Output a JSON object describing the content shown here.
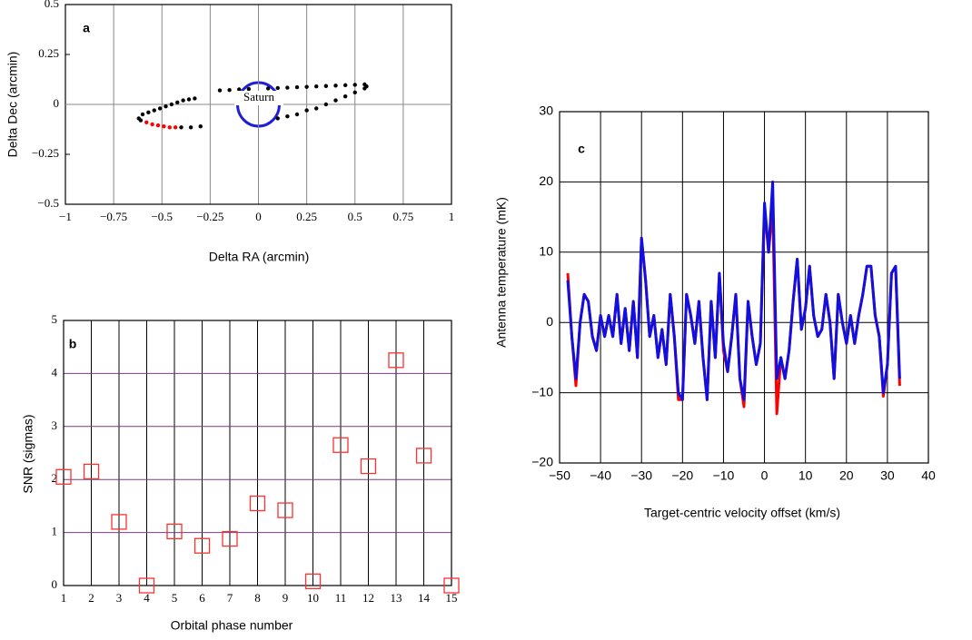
{
  "chart_data": [
    {
      "type": "scatter",
      "panel_label": "a",
      "xlabel": "Delta RA (arcmin)",
      "ylabel": "Delta Dec (arcmin)",
      "annotation": "Saturn",
      "xlim": [
        -1,
        1
      ],
      "ylim": [
        -0.5,
        0.5
      ],
      "xticks": [
        {
          "value": -1,
          "label": "−1"
        },
        {
          "value": -0.75,
          "label": "−0.75"
        },
        {
          "value": -0.5,
          "label": "−0.5"
        },
        {
          "value": -0.25,
          "label": "−0.25"
        },
        0,
        0.25,
        0.5,
        0.75,
        1
      ],
      "yticks": [
        {
          "value": -0.5,
          "label": "−0.5"
        },
        {
          "value": -0.25,
          "label": "−0.25"
        },
        0,
        0.25,
        0.5
      ],
      "xgrid": true,
      "ygrid": false,
      "xgrid_color": "#888888",
      "marker": "circle",
      "series": [
        {
          "color": "#000000",
          "x": [
            -0.62,
            -0.6,
            -0.57,
            -0.54,
            -0.51,
            -0.48,
            -0.45,
            -0.42,
            -0.39,
            -0.36,
            -0.33,
            -0.2,
            -0.15,
            -0.1,
            -0.05,
            0.05,
            0.1,
            0.15,
            0.2,
            0.25,
            0.3,
            0.35,
            0.4,
            0.45,
            0.5,
            0.55,
            0.56,
            0.55,
            0.5,
            0.45,
            0.4,
            0.35,
            0.3,
            0.25,
            0.2,
            0.15,
            0.1,
            -0.3,
            -0.35,
            -0.4,
            -0.61
          ],
          "values": [
            -0.07,
            -0.05,
            -0.04,
            -0.03,
            -0.02,
            -0.01,
            0,
            0.01,
            0.02,
            0.025,
            0.03,
            0.07,
            0.072,
            0.075,
            0.077,
            0.08,
            0.082,
            0.084,
            0.086,
            0.088,
            0.09,
            0.092,
            0.094,
            0.096,
            0.098,
            0.1,
            0.09,
            0.08,
            0.06,
            0.04,
            0.02,
            0,
            -0.02,
            -0.03,
            -0.05,
            -0.06,
            -0.07,
            -0.11,
            -0.115,
            -0.115,
            -0.08
          ]
        },
        {
          "color": "#ff0000",
          "x": [
            -0.58,
            -0.55,
            -0.52,
            -0.49,
            -0.46,
            -0.43
          ],
          "values": [
            -0.09,
            -0.1,
            -0.105,
            -0.11,
            -0.115,
            -0.115
          ]
        }
      ]
    },
    {
      "type": "scatter",
      "panel_label": "b",
      "xlabel": "Orbital phase number",
      "ylabel": "SNR (sigmas)",
      "xlim": [
        1,
        15
      ],
      "ylim": [
        0,
        5
      ],
      "xticks": [
        1,
        2,
        3,
        4,
        5,
        6,
        7,
        8,
        9,
        10,
        11,
        12,
        13,
        14,
        15
      ],
      "yticks": [
        0,
        1,
        2,
        3,
        4,
        5
      ],
      "xgrid": true,
      "ygrid": true,
      "xgrid_color": "#000000",
      "ygrid_color": "#7a3a8a",
      "marker": "square",
      "series": [
        {
          "color": "#ff3030",
          "x": [
            1,
            2,
            3,
            4,
            5,
            6,
            7,
            8,
            9,
            10,
            11,
            12,
            13,
            14,
            15
          ],
          "values": [
            2.05,
            2.15,
            1.2,
            0,
            1.02,
            0.75,
            0.88,
            1.55,
            1.42,
            0.08,
            2.65,
            2.25,
            4.25,
            2.45,
            0
          ]
        }
      ]
    },
    {
      "type": "line",
      "panel_label": "c",
      "xlabel": "Target-centric velocity offset (km/s)",
      "ylabel": "Antenna temperature (mK)",
      "xlim": [
        -50,
        40
      ],
      "ylim": [
        -20,
        30
      ],
      "xticks": [
        {
          "value": -50,
          "label": "−50"
        },
        {
          "value": -40,
          "label": "−40"
        },
        {
          "value": -30,
          "label": "−30"
        },
        {
          "value": -20,
          "label": "−20"
        },
        {
          "value": -10,
          "label": "−10"
        },
        0,
        10,
        20,
        30,
        40
      ],
      "yticks": [
        {
          "value": -20,
          "label": "−20"
        },
        {
          "value": -10,
          "label": "−10"
        },
        0,
        10,
        20,
        30
      ],
      "xgrid": true,
      "ygrid": true,
      "xgrid_color": "#000000",
      "ygrid_color": "#000000",
      "x": [
        -48,
        -47,
        -46,
        -45,
        -44,
        -43,
        -42,
        -41,
        -40,
        -39,
        -38,
        -37,
        -36,
        -35,
        -34,
        -33,
        -32,
        -31,
        -30,
        -29,
        -28,
        -27,
        -26,
        -25,
        -24,
        -23,
        -22,
        -21,
        -20,
        -19,
        -18,
        -17,
        -16,
        -15,
        -14,
        -13,
        -12,
        -11,
        -10,
        -9,
        -8,
        -7,
        -6,
        -5,
        -4,
        -3,
        -2,
        -1,
        0,
        1,
        2,
        3,
        4,
        5,
        6,
        7,
        8,
        9,
        10,
        11,
        12,
        13,
        14,
        15,
        16,
        17,
        18,
        19,
        20,
        21,
        22,
        23,
        24,
        25,
        26,
        27,
        28,
        29,
        30,
        31,
        32,
        33
      ],
      "series": [
        {
          "color": "#ff0000",
          "values": [
            7,
            -2,
            -9,
            0,
            4,
            3,
            -2,
            -4,
            1,
            -2,
            1,
            -2,
            4,
            -3,
            2,
            -4,
            3,
            -5,
            12,
            6,
            -2,
            1,
            -5,
            -1,
            -6,
            4,
            -2,
            -11,
            -11,
            4,
            1,
            -3,
            3,
            -5,
            -11,
            3,
            -5,
            7,
            -4,
            -7,
            -2,
            4,
            -8,
            -12,
            3,
            -2,
            -6,
            -3,
            16,
            10,
            16.5,
            -13,
            -5,
            -8,
            -4,
            3,
            9,
            -1,
            2,
            8,
            1,
            -2,
            -1,
            4,
            0,
            -8,
            4,
            0,
            -3,
            1,
            -3,
            1,
            4,
            8,
            8,
            1,
            -2,
            -10.5,
            -6,
            7,
            8,
            -9
          ]
        },
        {
          "color": "#1010e0",
          "values": [
            6,
            -2,
            -8,
            0,
            4,
            3,
            -2,
            -4,
            1,
            -2,
            1,
            -2,
            4,
            -3,
            2,
            -4,
            3,
            -5,
            12,
            6,
            -2,
            1,
            -5,
            -1,
            -6,
            4,
            -2,
            -10,
            -11,
            4,
            1,
            -3,
            3,
            -5,
            -11,
            3,
            -5,
            7,
            -3,
            -7,
            -2,
            4,
            -8,
            -11,
            3,
            -2,
            -6,
            -3,
            17,
            10,
            20,
            -8,
            -5,
            -8,
            -4,
            3,
            9,
            -1,
            2,
            8,
            1,
            -2,
            -1,
            4,
            0,
            -8,
            4,
            0,
            -3,
            1,
            -3,
            1,
            4,
            8,
            8,
            1,
            -2,
            -10,
            -6,
            7,
            8,
            -8
          ]
        }
      ]
    }
  ]
}
